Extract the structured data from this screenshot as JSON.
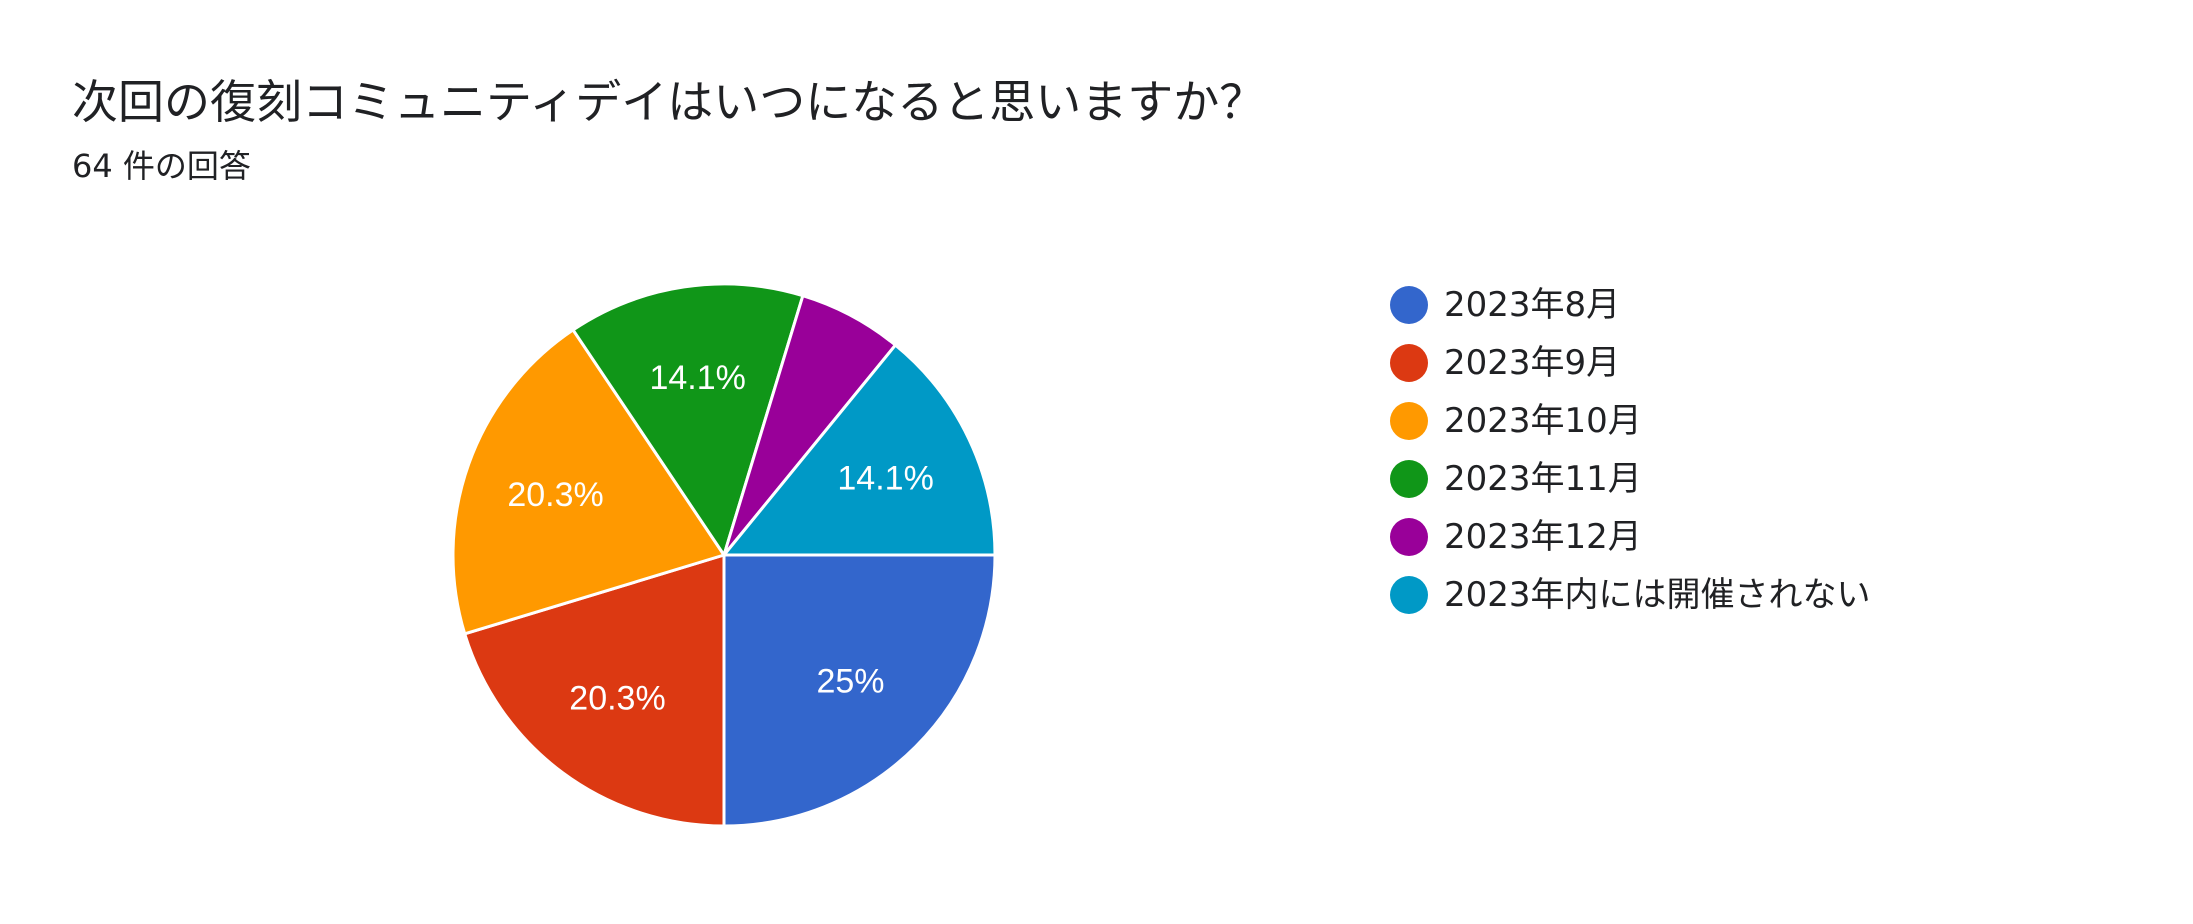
{
  "header": {
    "title": "次回の復刻コミュニティデイはいつになると思いますか？",
    "subtitle": "64 件の回答"
  },
  "chart_data": {
    "type": "pie",
    "title": "次回の復刻コミュニティデイはいつになると思いますか？",
    "subtitle": "64 件の回答",
    "categories": [
      "2023年8月",
      "2023年9月",
      "2023年10月",
      "2023年11月",
      "2023年12月",
      "2023年内には開催されない"
    ],
    "values": [
      25,
      20.3,
      20.3,
      14.1,
      6.2,
      14.1
    ],
    "labels": [
      "25%",
      "20.3%",
      "20.3%",
      "14.1%",
      "",
      "14.1%"
    ],
    "colors": [
      "#3366cc",
      "#dc3912",
      "#ff9900",
      "#109618",
      "#990099",
      "#0099c6"
    ],
    "legend_position": "right"
  }
}
